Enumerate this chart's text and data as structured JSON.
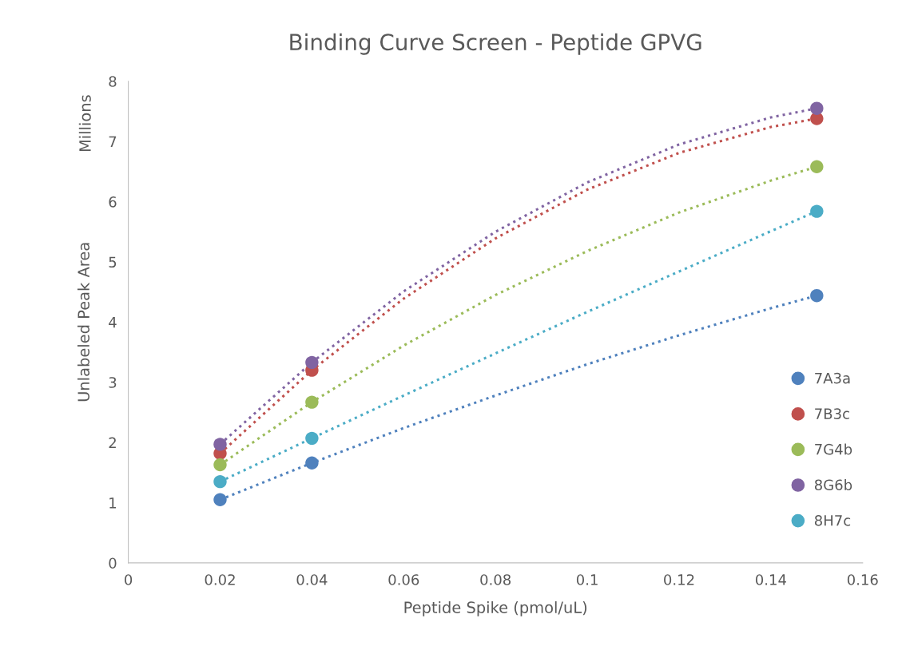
{
  "chart_data": {
    "type": "scatter",
    "title": "Binding Curve Screen - Peptide GPVG",
    "xlabel": "Peptide Spike (pmol/uL)",
    "ylabel": "Unlabeled Peak Area",
    "annotations": [
      "Millions"
    ],
    "x": [
      0.02,
      0.04,
      0.15
    ],
    "series": [
      {
        "name": "7A3a",
        "color": "#4f81bd",
        "values": [
          1.05,
          1.66,
          4.44
        ]
      },
      {
        "name": "7B3c",
        "color": "#c0504d",
        "values": [
          1.82,
          3.2,
          7.38
        ]
      },
      {
        "name": "7G4b",
        "color": "#9bbb59",
        "values": [
          1.63,
          2.67,
          6.58
        ]
      },
      {
        "name": "8G6b",
        "color": "#8064a2",
        "values": [
          1.97,
          3.33,
          7.55
        ]
      },
      {
        "name": "8H7c",
        "color": "#4bacc6",
        "values": [
          1.35,
          2.07,
          5.84
        ]
      },
      {
        "type": "line",
        "line_style": "dotted",
        "marker": "none",
        "color": "#4f81bd",
        "x": [
          0.02,
          0.04,
          0.06,
          0.08,
          0.1,
          0.12,
          0.14,
          0.15
        ],
        "values": [
          1.05,
          1.66,
          2.24,
          2.78,
          3.3,
          3.78,
          4.23,
          4.44
        ]
      },
      {
        "type": "line",
        "line_style": "dotted",
        "marker": "none",
        "color": "#c0504d",
        "x": [
          0.02,
          0.04,
          0.06,
          0.08,
          0.1,
          0.12,
          0.14,
          0.15
        ],
        "values": [
          1.82,
          3.2,
          4.39,
          5.39,
          6.2,
          6.81,
          7.24,
          7.38
        ]
      },
      {
        "type": "line",
        "line_style": "dotted",
        "marker": "none",
        "color": "#9bbb59",
        "x": [
          0.02,
          0.04,
          0.06,
          0.08,
          0.1,
          0.12,
          0.14,
          0.15
        ],
        "values": [
          1.63,
          2.67,
          3.61,
          4.45,
          5.18,
          5.82,
          6.35,
          6.58
        ]
      },
      {
        "type": "line",
        "line_style": "dotted",
        "marker": "none",
        "color": "#8064a2",
        "x": [
          0.02,
          0.04,
          0.06,
          0.08,
          0.1,
          0.12,
          0.14,
          0.15
        ],
        "values": [
          1.97,
          3.33,
          4.51,
          5.5,
          6.32,
          6.95,
          7.4,
          7.55
        ]
      },
      {
        "type": "line",
        "line_style": "dotted",
        "marker": "none",
        "color": "#4bacc6",
        "x": [
          0.02,
          0.04,
          0.06,
          0.08,
          0.1,
          0.12,
          0.14,
          0.15
        ],
        "values": [
          1.35,
          2.07,
          2.78,
          3.48,
          4.17,
          4.84,
          5.51,
          5.84
        ]
      }
    ],
    "marker": "circle",
    "xlim": [
      0,
      0.16
    ],
    "xticks": [
      0,
      0.02,
      0.04,
      0.06,
      0.08,
      0.1,
      0.12,
      0.14,
      0.16
    ],
    "ylim": [
      0,
      8
    ],
    "yticks": [
      0,
      1,
      2,
      3,
      4,
      5,
      6,
      7,
      8
    ],
    "grid": false,
    "legend": "right"
  }
}
